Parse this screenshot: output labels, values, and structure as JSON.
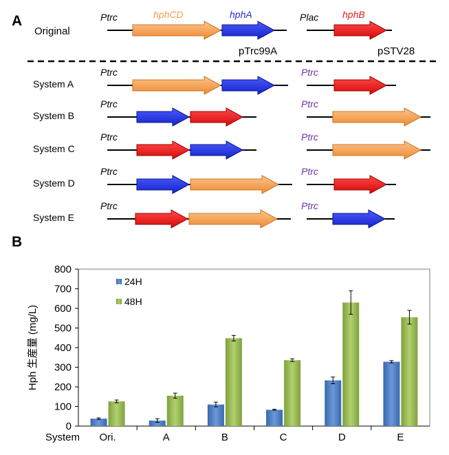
{
  "panel_a": {
    "label": "A",
    "original": {
      "row_label": "Original",
      "promoter_1": "Ptrc",
      "promoter_2": "Plac",
      "gene_1": "hphCD",
      "gene_2": "hphA",
      "gene_3": "hphB",
      "plasmid_1": "pTrc99A",
      "plasmid_2": "pSTV28"
    },
    "systems": [
      {
        "label": "System A",
        "promoter_left": "Ptrc",
        "promoter_right": "Ptrc",
        "left_genes": [
          "hphCD",
          "hphA"
        ],
        "right_genes": [
          "hphB"
        ]
      },
      {
        "label": "System B",
        "promoter_left": "Ptrc",
        "promoter_right": "Ptrc",
        "left_genes": [
          "hphA",
          "hphB"
        ],
        "right_genes": [
          "hphCD"
        ]
      },
      {
        "label": "System C",
        "promoter_left": "Ptrc",
        "promoter_right": "Ptrc",
        "left_genes": [
          "hphB",
          "hphA"
        ],
        "right_genes": [
          "hphCD"
        ]
      },
      {
        "label": "System D",
        "promoter_left": "Ptrc",
        "promoter_right": "Ptrc",
        "left_genes": [
          "hphA",
          "hphCD"
        ],
        "right_genes": [
          "hphB"
        ]
      },
      {
        "label": "System E",
        "promoter_left": "Ptrc",
        "promoter_right": "Ptrc",
        "left_genes": [
          "hphB",
          "hphCD"
        ],
        "right_genes": [
          "hphA"
        ]
      }
    ],
    "gene_colors": {
      "hphCD": "#f59d4d",
      "hphA": "#1f2fe0",
      "hphB": "#f01414"
    },
    "promoter_colors": {
      "original": "#000000",
      "system": "#7030a0"
    }
  },
  "panel_b": {
    "label": "B",
    "chart_data": {
      "type": "bar",
      "title": "",
      "xlabel": "System",
      "ylabel": "Hph 生産量 (mg/L)",
      "ylim": [
        0,
        800
      ],
      "yticks": [
        "0",
        "100",
        "200",
        "300",
        "400",
        "500",
        "600",
        "700",
        "800"
      ],
      "categories": [
        "Ori.",
        "A",
        "B",
        "C",
        "D",
        "E"
      ],
      "series": [
        {
          "name": "24H",
          "color": "#4f7fc0",
          "values": [
            38,
            28,
            110,
            83,
            233,
            328
          ],
          "errors": [
            4,
            9,
            12,
            3,
            17,
            6
          ]
        },
        {
          "name": "48H",
          "color": "#9bbb59",
          "values": [
            126,
            155,
            448,
            336,
            630,
            555
          ],
          "errors": [
            7,
            13,
            14,
            7,
            60,
            35
          ]
        }
      ],
      "grid": false,
      "legend": "top-left"
    }
  }
}
